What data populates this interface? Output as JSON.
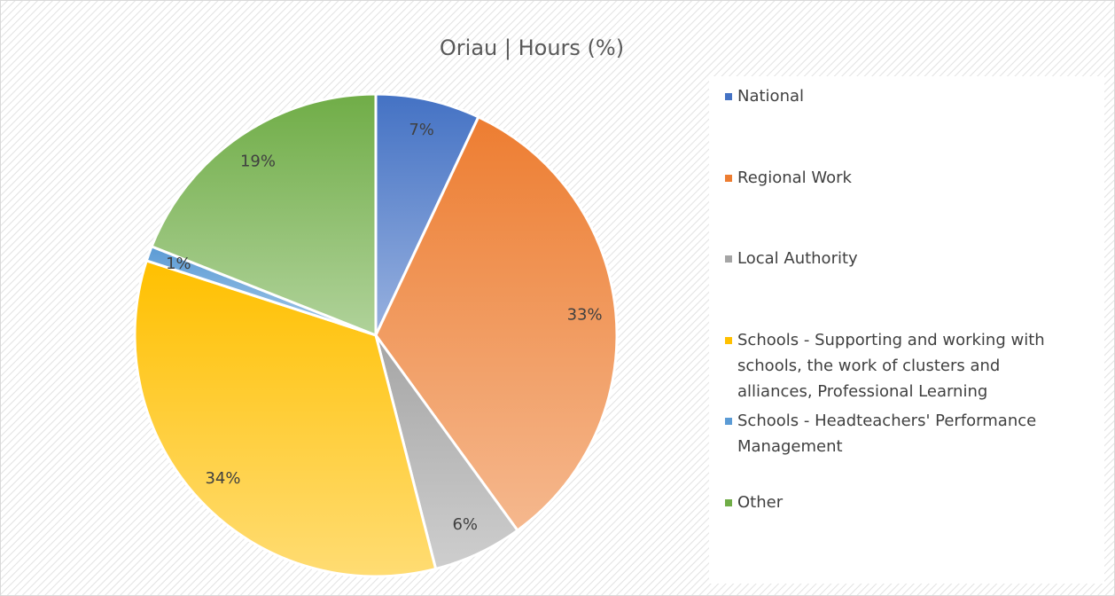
{
  "chart_data": {
    "type": "pie",
    "title": "Oriau | Hours (%)",
    "categories": [
      "National",
      "Regional Work",
      "Local Authority",
      "Schools - Supporting and working with schools, the work of clusters and alliances, Professional Learning",
      "Schools - Headteachers' Performance Management",
      "Other"
    ],
    "values": [
      7,
      33,
      6,
      34,
      1,
      19
    ],
    "value_labels": [
      "7%",
      "33%",
      "6%",
      "34%",
      "1%",
      "19%"
    ],
    "colors": [
      "#4472c4",
      "#ed7d31",
      "#a5a5a5",
      "#ffc000",
      "#5b9bd5",
      "#70ad47"
    ],
    "legend": "right"
  }
}
